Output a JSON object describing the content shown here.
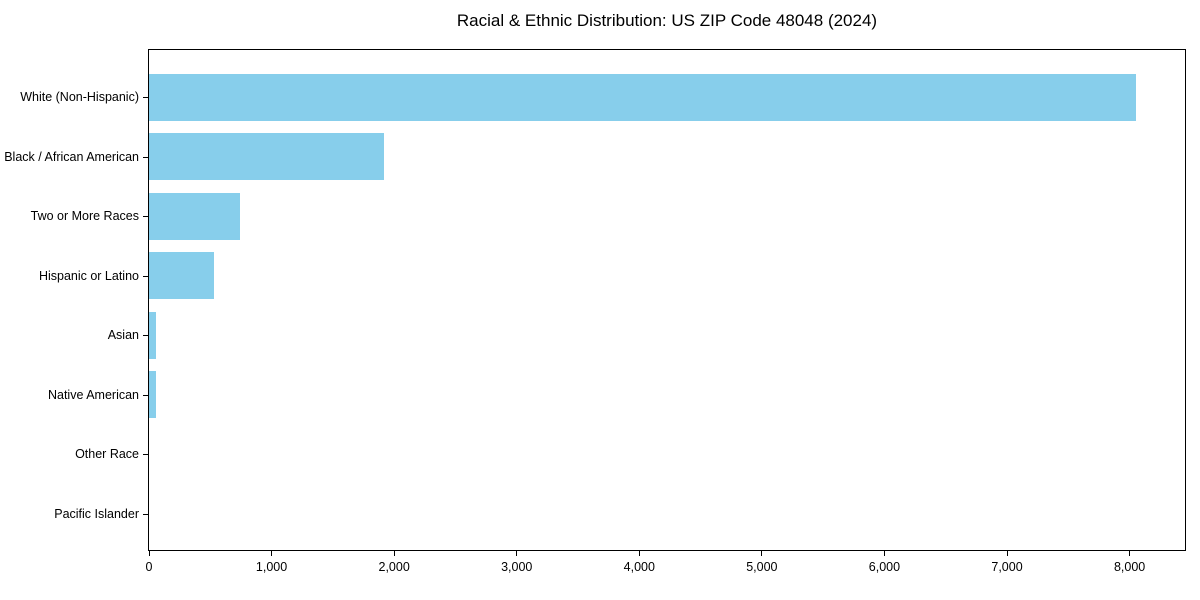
{
  "chart_data": {
    "type": "bar",
    "orientation": "horizontal",
    "title": "Racial & Ethnic Distribution: US ZIP Code 48048 (2024)",
    "categories": [
      "White (Non-Hispanic)",
      "Black / African American",
      "Two or More Races",
      "Hispanic or Latino",
      "Asian",
      "Native American",
      "Other Race",
      "Pacific Islander"
    ],
    "values": [
      8050,
      1920,
      745,
      530,
      55,
      60,
      0,
      0
    ],
    "bar_color": "#87CEEB",
    "xlabel": "",
    "ylabel": "",
    "xlim": [
      0,
      8452
    ],
    "x_ticks": [
      0,
      1000,
      2000,
      3000,
      4000,
      5000,
      6000,
      7000,
      8000
    ],
    "x_tick_labels": [
      "0",
      "1,000",
      "2,000",
      "3,000",
      "4,000",
      "5,000",
      "6,000",
      "7,000",
      "8,000"
    ],
    "grid": false,
    "legend": null,
    "frame": true
  }
}
